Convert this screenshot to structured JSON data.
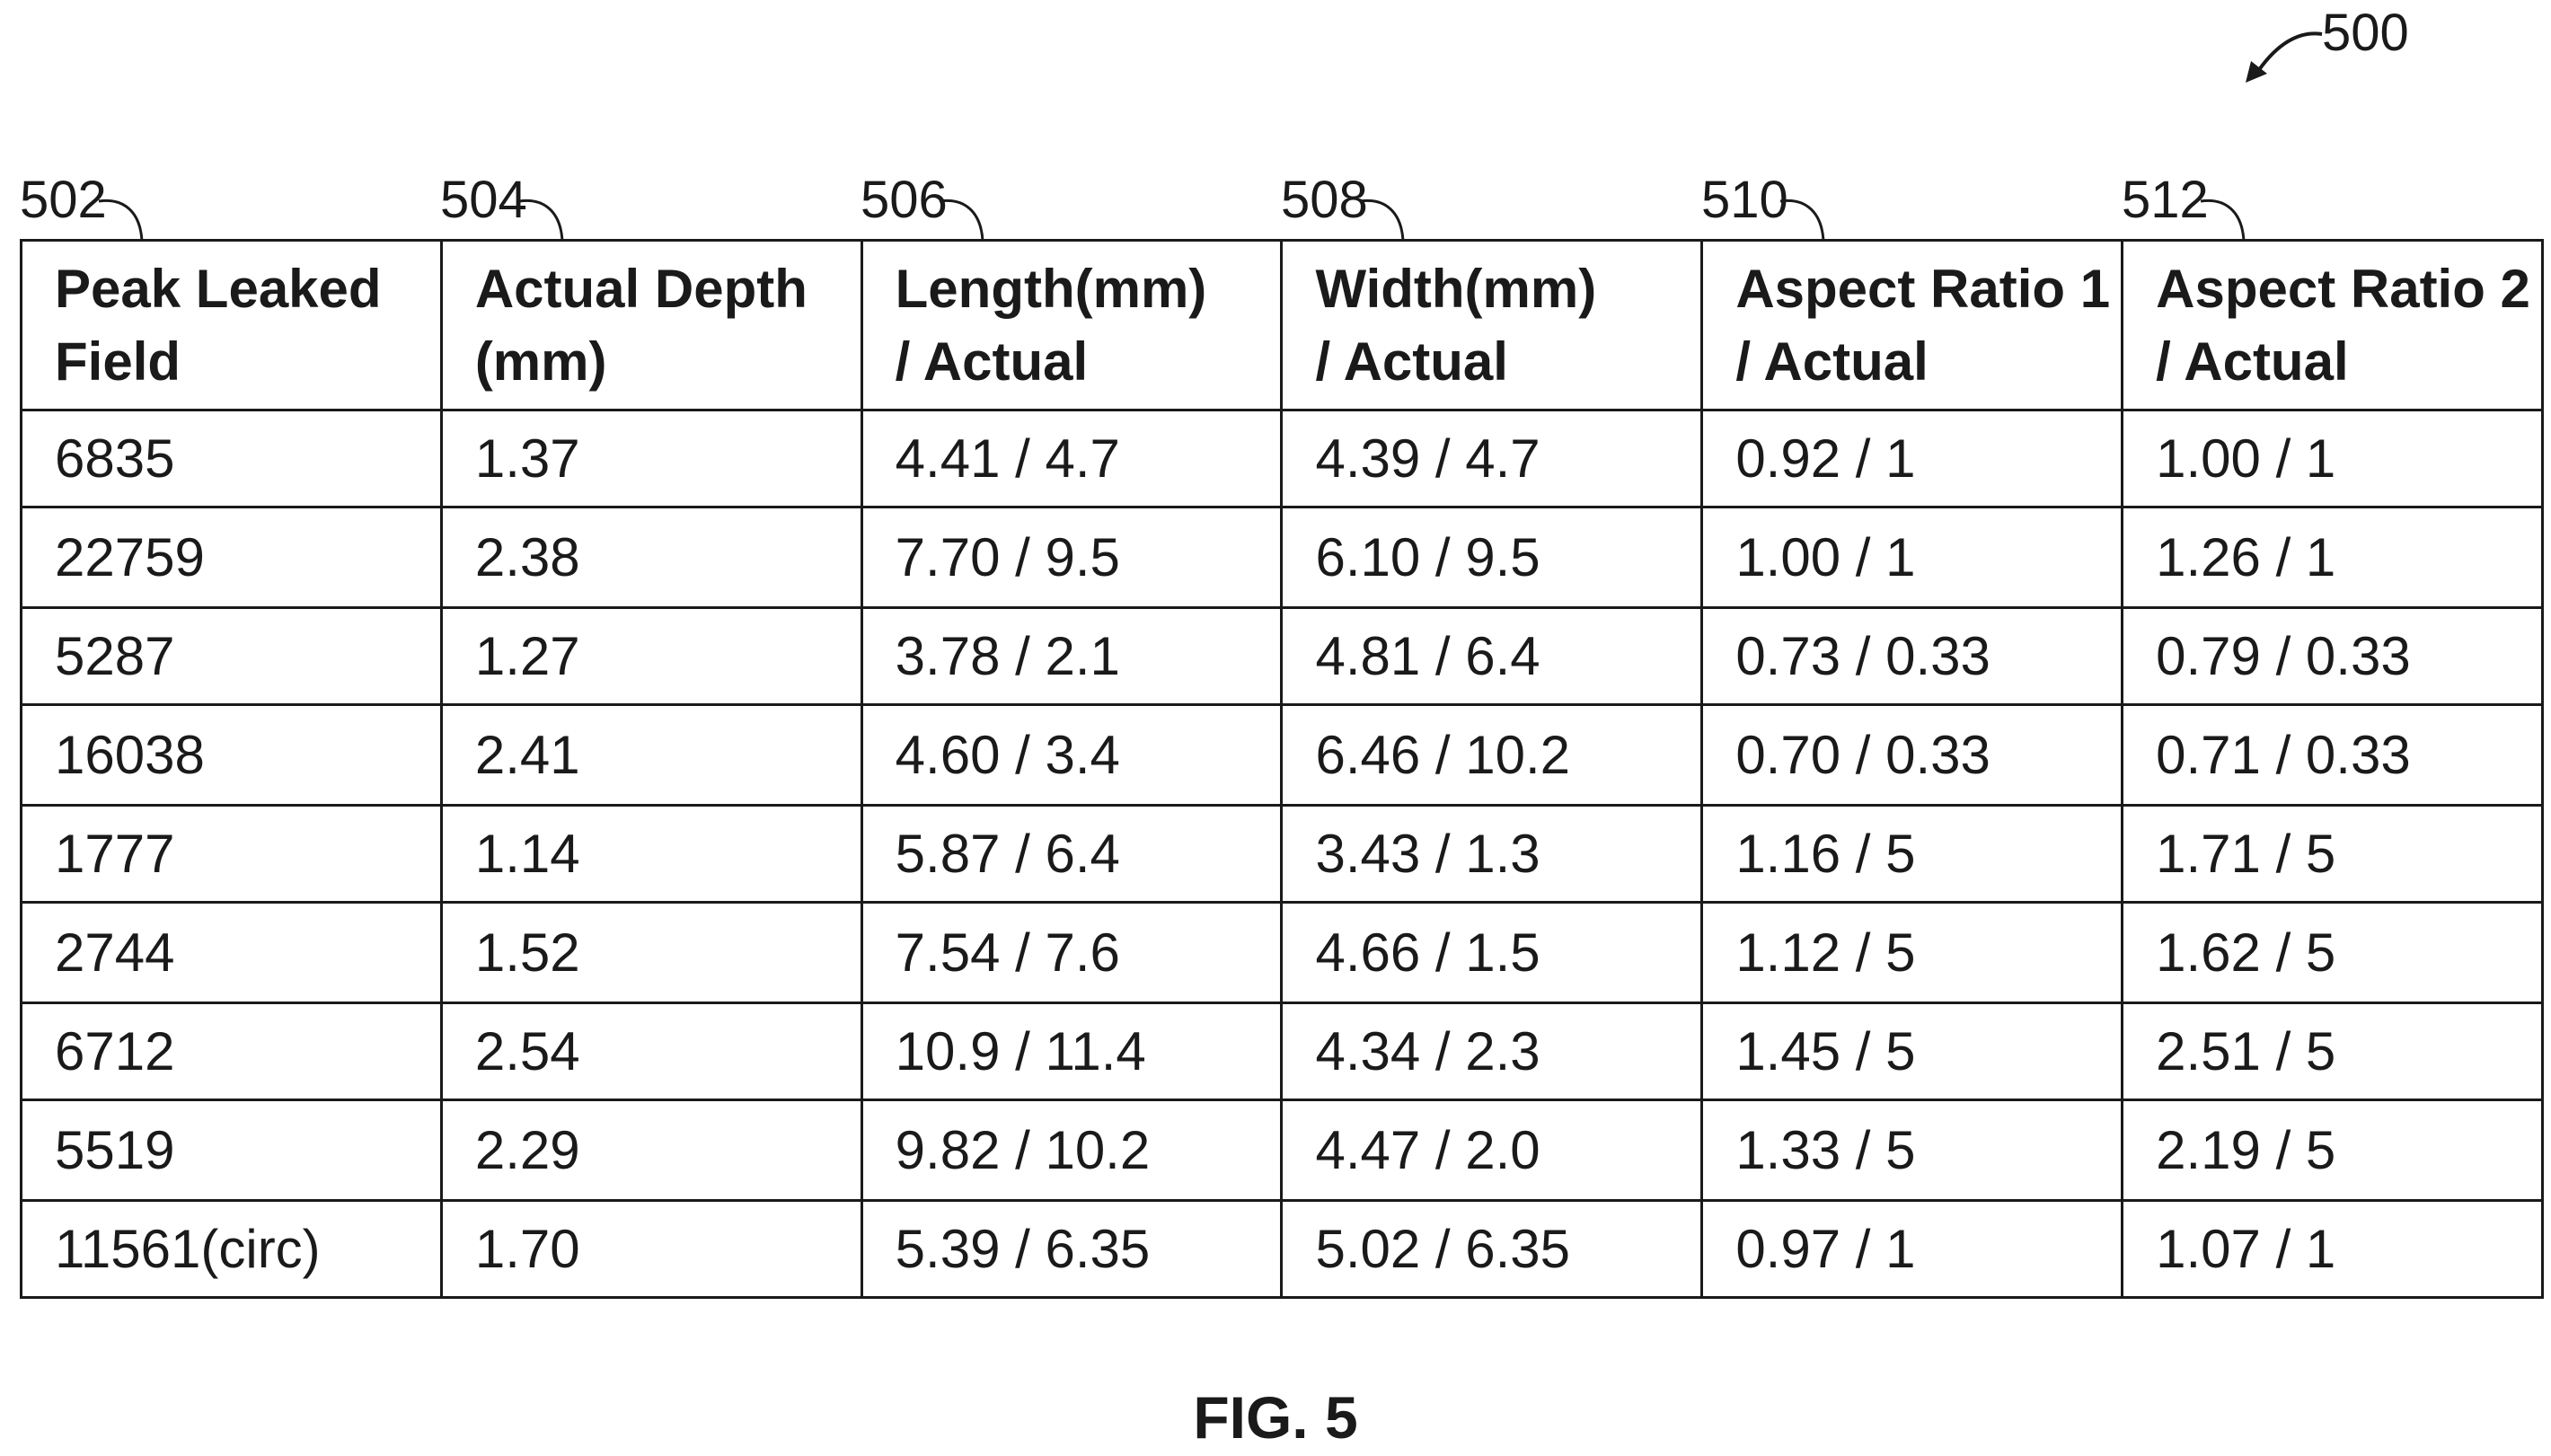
{
  "figure_ref": "500",
  "caption": "FIG. 5",
  "columns": [
    {
      "ref": "502",
      "header_line1": "Peak Leaked",
      "header_line2": "Field"
    },
    {
      "ref": "504",
      "header_line1": "Actual Depth",
      "header_line2": "(mm)"
    },
    {
      "ref": "506",
      "header_line1": "Length(mm)",
      "header_line2": "/ Actual"
    },
    {
      "ref": "508",
      "header_line1": "Width(mm)",
      "header_line2": "/ Actual"
    },
    {
      "ref": "510",
      "header_line1": "Aspect Ratio 1",
      "header_line2": "/ Actual"
    },
    {
      "ref": "512",
      "header_line1": "Aspect Ratio 2",
      "header_line2": "/ Actual"
    }
  ],
  "rows": [
    [
      "6835",
      "1.37",
      "4.41 / 4.7",
      "4.39 / 4.7",
      "0.92 / 1",
      "1.00 / 1"
    ],
    [
      "22759",
      "2.38",
      "7.70 / 9.5",
      "6.10 / 9.5",
      "1.00 / 1",
      "1.26 / 1"
    ],
    [
      "5287",
      "1.27",
      "3.78 / 2.1",
      "4.81 / 6.4",
      "0.73 / 0.33",
      "0.79 / 0.33"
    ],
    [
      "16038",
      "2.41",
      "4.60 / 3.4",
      "6.46 / 10.2",
      "0.70 / 0.33",
      "0.71 / 0.33"
    ],
    [
      "1777",
      "1.14",
      "5.87 / 6.4",
      "3.43 / 1.3",
      "1.16 / 5",
      "1.71 / 5"
    ],
    [
      "2744",
      "1.52",
      "7.54 / 7.6",
      "4.66 / 1.5",
      "1.12 / 5",
      "1.62 / 5"
    ],
    [
      "6712",
      "2.54",
      "10.9 / 11.4",
      "4.34 / 2.3",
      "1.45 / 5",
      "2.51 / 5"
    ],
    [
      "5519",
      "2.29",
      "9.82 / 10.2",
      "4.47 / 2.0",
      "1.33 / 5",
      "2.19 / 5"
    ],
    [
      "11561(circ)",
      "1.70",
      "5.39 / 6.35",
      "5.02 / 6.35",
      "0.97 / 1",
      "1.07 / 1"
    ]
  ]
}
